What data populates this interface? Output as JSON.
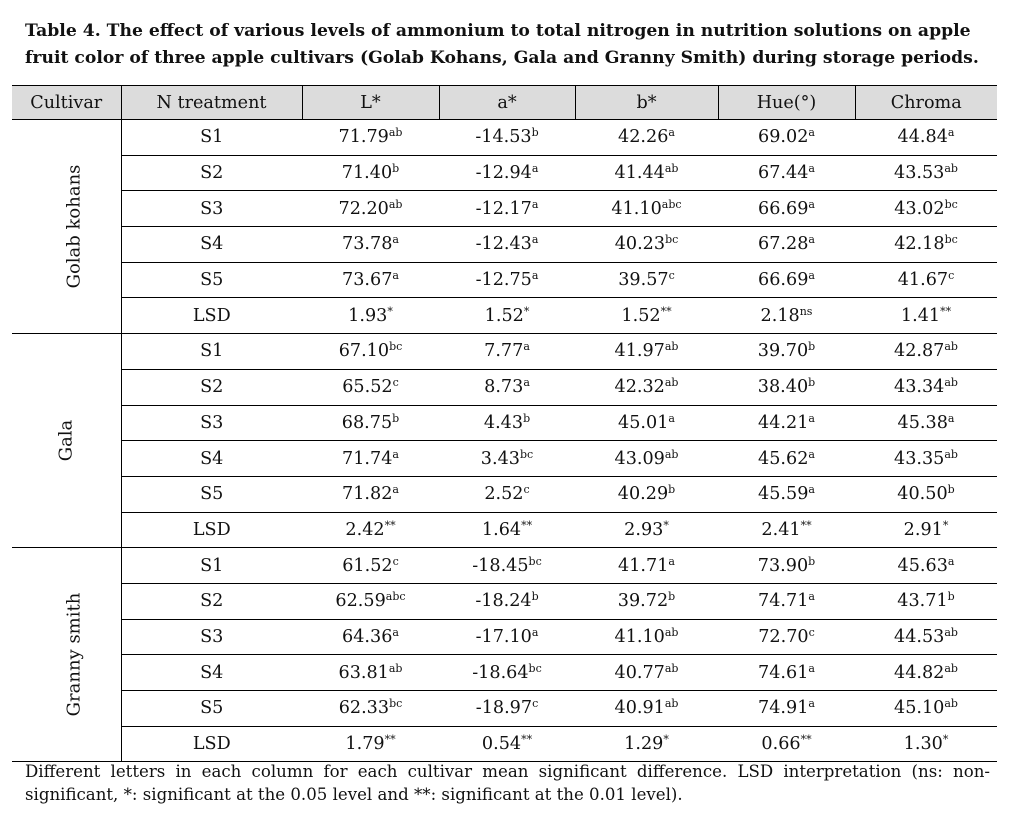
{
  "caption": "Table 4. The effect of various levels of ammonium to total nitrogen in nutrition solutions on apple fruit color of three apple cultivars (Golab Kohans, Gala and Granny Smith) during storage periods.",
  "headers": [
    "Cultivar",
    "N treatment",
    "L*",
    "a*",
    "b*",
    "Hue(°)",
    "Chroma"
  ],
  "groups": [
    {
      "cultivar": "Golab kohans",
      "rows": [
        {
          "t": "S1",
          "cells": [
            {
              "v": "71.79",
              "s": "ab"
            },
            {
              "v": "-14.53",
              "s": "b"
            },
            {
              "v": "42.26",
              "s": "a"
            },
            {
              "v": "69.02",
              "s": "a"
            },
            {
              "v": "44.84",
              "s": "a"
            }
          ]
        },
        {
          "t": "S2",
          "cells": [
            {
              "v": "71.40",
              "s": "b"
            },
            {
              "v": "-12.94",
              "s": "a"
            },
            {
              "v": "41.44",
              "s": "ab"
            },
            {
              "v": "67.44",
              "s": "a"
            },
            {
              "v": "43.53",
              "s": "ab"
            }
          ]
        },
        {
          "t": "S3",
          "cells": [
            {
              "v": "72.20",
              "s": "ab"
            },
            {
              "v": "-12.17",
              "s": "a"
            },
            {
              "v": "41.10",
              "s": "abc"
            },
            {
              "v": "66.69",
              "s": "a"
            },
            {
              "v": "43.02",
              "s": "bc"
            }
          ]
        },
        {
          "t": "S4",
          "cells": [
            {
              "v": "73.78",
              "s": "a"
            },
            {
              "v": "-12.43",
              "s": "a"
            },
            {
              "v": "40.23",
              "s": "bc"
            },
            {
              "v": "67.28",
              "s": "a"
            },
            {
              "v": "42.18",
              "s": "bc"
            }
          ]
        },
        {
          "t": "S5",
          "cells": [
            {
              "v": "73.67",
              "s": "a"
            },
            {
              "v": "-12.75",
              "s": "a"
            },
            {
              "v": "39.57",
              "s": "c"
            },
            {
              "v": "66.69",
              "s": "a"
            },
            {
              "v": "41.67",
              "s": "c"
            }
          ]
        },
        {
          "t": "LSD",
          "cells": [
            {
              "v": "1.93",
              "s": "*"
            },
            {
              "v": "1.52",
              "s": "*"
            },
            {
              "v": "1.52",
              "s": "**"
            },
            {
              "v": "2.18",
              "s": "ns"
            },
            {
              "v": "1.41",
              "s": "**"
            }
          ]
        }
      ]
    },
    {
      "cultivar": "Gala",
      "rows": [
        {
          "t": "S1",
          "cells": [
            {
              "v": "67.10",
              "s": "bc"
            },
            {
              "v": "7.77",
              "s": "a"
            },
            {
              "v": "41.97",
              "s": "ab"
            },
            {
              "v": "39.70",
              "s": "b"
            },
            {
              "v": "42.87",
              "s": "ab"
            }
          ]
        },
        {
          "t": "S2",
          "cells": [
            {
              "v": "65.52",
              "s": "c"
            },
            {
              "v": "8.73",
              "s": "a"
            },
            {
              "v": "42.32",
              "s": "ab"
            },
            {
              "v": "38.40",
              "s": "b"
            },
            {
              "v": "43.34",
              "s": "ab"
            }
          ]
        },
        {
          "t": "S3",
          "cells": [
            {
              "v": "68.75",
              "s": "b"
            },
            {
              "v": "4.43",
              "s": "b"
            },
            {
              "v": "45.01",
              "s": "a"
            },
            {
              "v": "44.21",
              "s": "a"
            },
            {
              "v": "45.38",
              "s": "a"
            }
          ]
        },
        {
          "t": "S4",
          "cells": [
            {
              "v": "71.74",
              "s": "a"
            },
            {
              "v": "3.43",
              "s": "bc"
            },
            {
              "v": "43.09",
              "s": "ab"
            },
            {
              "v": "45.62",
              "s": "a"
            },
            {
              "v": "43.35",
              "s": "ab"
            }
          ]
        },
        {
          "t": "S5",
          "cells": [
            {
              "v": "71.82",
              "s": "a"
            },
            {
              "v": "2.52",
              "s": "c"
            },
            {
              "v": "40.29",
              "s": "b"
            },
            {
              "v": "45.59",
              "s": "a"
            },
            {
              "v": "40.50",
              "s": "b"
            }
          ]
        },
        {
          "t": "LSD",
          "cells": [
            {
              "v": "2.42",
              "s": "**"
            },
            {
              "v": "1.64",
              "s": "**"
            },
            {
              "v": "2.93",
              "s": "*"
            },
            {
              "v": "2.41",
              "s": "**"
            },
            {
              "v": "2.91",
              "s": "*"
            }
          ]
        }
      ]
    },
    {
      "cultivar": "Granny smith",
      "rows": [
        {
          "t": "S1",
          "cells": [
            {
              "v": "61.52",
              "s": "c"
            },
            {
              "v": "-18.45",
              "s": "bc"
            },
            {
              "v": "41.71",
              "s": "a"
            },
            {
              "v": "73.90",
              "s": "b"
            },
            {
              "v": "45.63",
              "s": "a"
            }
          ]
        },
        {
          "t": "S2",
          "cells": [
            {
              "v": "62.59",
              "s": "abc"
            },
            {
              "v": "-18.24",
              "s": "b"
            },
            {
              "v": "39.72",
              "s": "b"
            },
            {
              "v": "74.71",
              "s": "a"
            },
            {
              "v": "43.71",
              "s": "b"
            }
          ]
        },
        {
          "t": "S3",
          "cells": [
            {
              "v": "64.36",
              "s": "a"
            },
            {
              "v": "-17.10",
              "s": "a"
            },
            {
              "v": "41.10",
              "s": "ab"
            },
            {
              "v": "72.70",
              "s": "c"
            },
            {
              "v": "44.53",
              "s": "ab"
            }
          ]
        },
        {
          "t": "S4",
          "cells": [
            {
              "v": "63.81",
              "s": "ab"
            },
            {
              "v": "-18.64",
              "s": "bc"
            },
            {
              "v": "40.77",
              "s": "ab"
            },
            {
              "v": "74.61",
              "s": "a"
            },
            {
              "v": "44.82",
              "s": "ab"
            }
          ]
        },
        {
          "t": "S5",
          "cells": [
            {
              "v": "62.33",
              "s": "bc"
            },
            {
              "v": "-18.97",
              "s": "c"
            },
            {
              "v": "40.91",
              "s": "ab"
            },
            {
              "v": "74.91",
              "s": "a"
            },
            {
              "v": "45.10",
              "s": "ab"
            }
          ]
        },
        {
          "t": "LSD",
          "cells": [
            {
              "v": "1.79",
              "s": "**"
            },
            {
              "v": "0.54",
              "s": "**"
            },
            {
              "v": "1.29",
              "s": "*"
            },
            {
              "v": "0.66",
              "s": "**"
            },
            {
              "v": "1.30",
              "s": "*"
            }
          ]
        }
      ]
    }
  ],
  "footnote": "Different letters in each column for each cultivar mean significant difference. LSD interpretation (ns: non-significant, *: significant at the 0.05 level and **: significant at the 0.01 level)."
}
